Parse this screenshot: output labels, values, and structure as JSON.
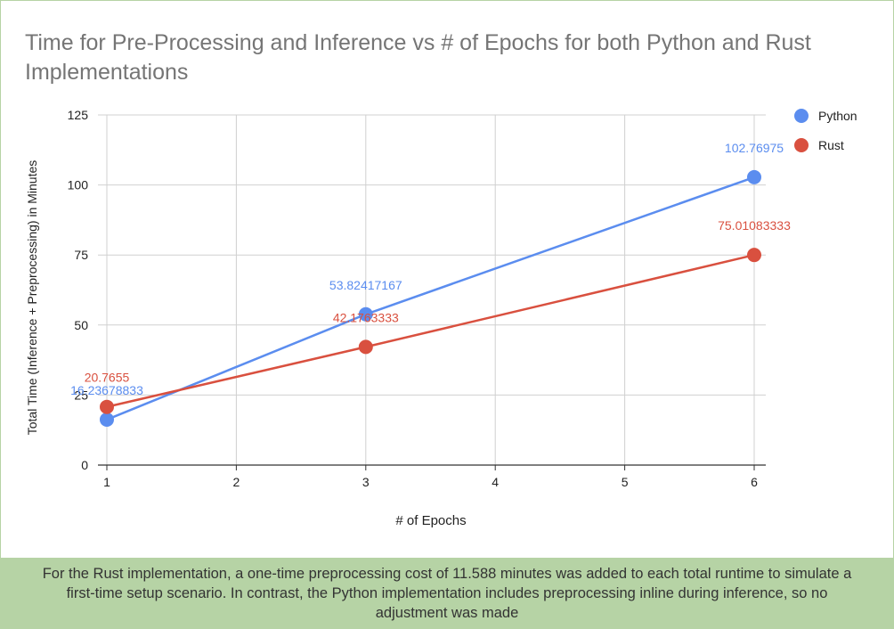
{
  "chart_data": {
    "type": "line",
    "title": "Time for Pre-Processing and Inference vs # of Epochs for both Python and Rust Implementations",
    "xlabel": "# of Epochs",
    "ylabel": "Total Time (Inference + Preprocessing) in Minutes",
    "xlim": [
      1,
      6
    ],
    "ylim": [
      0,
      125
    ],
    "xticks": [
      1,
      2,
      3,
      4,
      5,
      6
    ],
    "yticks": [
      0,
      25,
      50,
      75,
      100,
      125
    ],
    "grid": true,
    "legend": "top-right",
    "series": [
      {
        "name": "Python",
        "color": "#5b8def",
        "x": [
          1,
          3,
          6
        ],
        "y": [
          16.23678833,
          53.82417167,
          102.76975
        ],
        "labels": [
          "16.23678833",
          "53.82417167",
          "102.76975"
        ]
      },
      {
        "name": "Rust",
        "color": "#d9503f",
        "x": [
          1,
          3,
          6
        ],
        "y": [
          20.7655,
          42.1763333,
          75.01083333
        ],
        "labels": [
          "20.7655",
          "42.1763333",
          "75.01083333"
        ]
      }
    ]
  },
  "caption": "For the Rust implementation, a one-time preprocessing cost of 11.588 minutes was added to each total runtime to simulate a first-time setup scenario. In contrast, the Python implementation includes preprocessing inline during inference, so no adjustment was made"
}
